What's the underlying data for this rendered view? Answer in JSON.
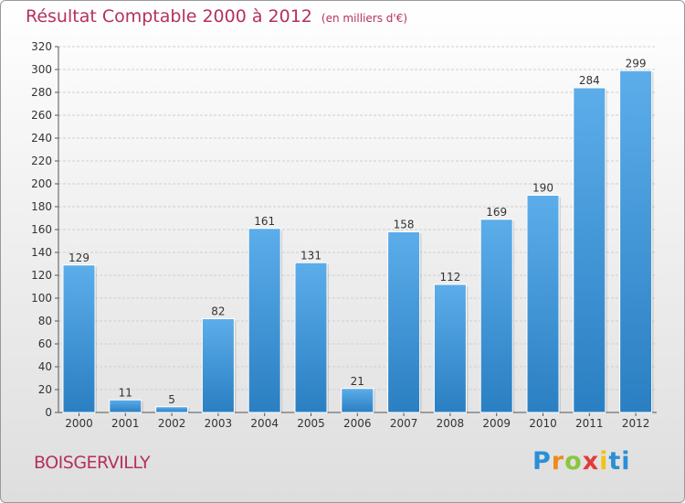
{
  "header": {
    "title": "Résultat Comptable 2000 à 2012",
    "subtitle": "(en milliers d'€)"
  },
  "footer": {
    "town": "BOISGERVILLY",
    "logo_letters": [
      "P",
      "r",
      "o",
      "x",
      "i",
      "ti"
    ]
  },
  "colors": {
    "title": "#b5305f",
    "bar_top": "#5cadea",
    "bar_bottom": "#2a7fc2",
    "grid": "#cfcfcf"
  },
  "chart_data": {
    "type": "bar",
    "title": "Résultat Comptable 2000 à 2012",
    "subtitle": "(en milliers d'€)",
    "xlabel": "",
    "ylabel": "",
    "categories": [
      "2000",
      "2001",
      "2002",
      "2003",
      "2004",
      "2005",
      "2006",
      "2007",
      "2008",
      "2009",
      "2010",
      "2011",
      "2012"
    ],
    "values": [
      129,
      11,
      5,
      82,
      161,
      131,
      21,
      158,
      112,
      169,
      190,
      284,
      299
    ],
    "ylim": [
      0,
      320
    ],
    "yticks": [
      0,
      20,
      40,
      60,
      80,
      100,
      120,
      140,
      160,
      180,
      200,
      220,
      240,
      260,
      280,
      300,
      320
    ],
    "grid": true,
    "legend": "none"
  }
}
